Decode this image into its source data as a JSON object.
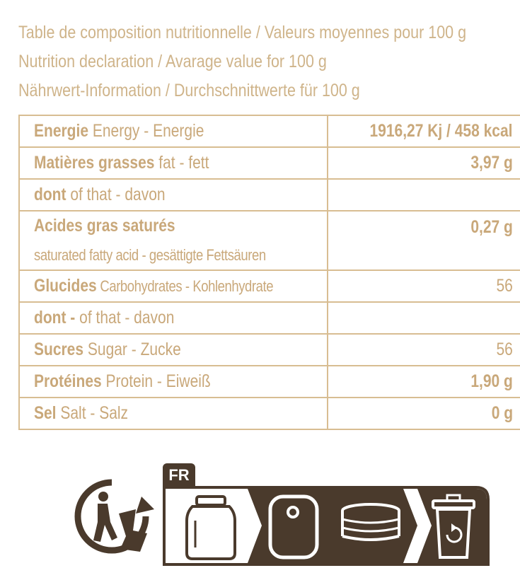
{
  "header": {
    "line1": "Table de composition nutritionnelle / Valeurs moyennes pour 100 g",
    "line2": "Nutrition declaration / Avarage value for 100 g",
    "line3": "Nährwert-Information / Durchschnittwerte für 100 g"
  },
  "rows": [
    {
      "bold": "Energie",
      "rest": " Energy - Energie",
      "value": "1916,27 Kj / 458 kcal"
    },
    {
      "bold": "Matières grasses",
      "rest": " fat - fett",
      "value": "3,97 g"
    },
    {
      "bold": "dont",
      "rest": " of that - davon",
      "value": ""
    },
    {
      "bold": "Acides gras saturés",
      "rest": "saturated fatty acid - gesättigte Fettsäuren",
      "value": "0,27 g"
    },
    {
      "bold": "Glucides",
      "rest": " Carbohydrates - Kohlenhydrate",
      "value": "56"
    },
    {
      "bold": "dont -",
      "rest": " of that - davon",
      "value": ""
    },
    {
      "bold": "Sucres",
      "rest": "  Sugar - Zucke",
      "value": "56"
    },
    {
      "bold": "Protéines",
      "rest": " Protein - Eiweiß",
      "value": "1,90 g"
    },
    {
      "bold": "Sel",
      "rest": "  Salt - Salz",
      "value": "0 g"
    }
  ],
  "recycling": {
    "country_tab": "FR",
    "icons": [
      "triman-icon",
      "glass-jar-icon",
      "lid-icon",
      "metal-caps-icon",
      "recycling-bin-icon"
    ],
    "dark_color": "#4a3a2c",
    "accent_color": "#c9a87a"
  }
}
